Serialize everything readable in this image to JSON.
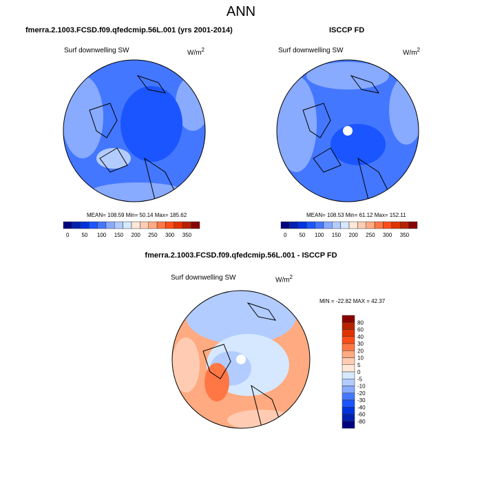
{
  "title": "ANN",
  "panels": [
    {
      "title": "fmerra.2.1003.FCSD.f09.qfedcmip.56L.001 (yrs 2001-2014)",
      "variable": "Surf downwelling SW",
      "units": "W/m",
      "units_sup": "2",
      "stats": "MEAN= 108.59  Min=  50.14  Max= 185.62"
    },
    {
      "title": "ISCCP FD",
      "variable": "Surf downwelling SW",
      "units": "W/m",
      "units_sup": "2",
      "stats": "MEAN= 108.53  Min=  61.12  Max= 152.11"
    },
    {
      "title": "fmerra.2.1003.FCSD.f09.qfedcmip.56L.001 - ISCCP FD",
      "variable": "Surf downwelling SW",
      "units": "W/m",
      "units_sup": "2",
      "stats": "MIN = -22.82 MAX =  42.37"
    }
  ],
  "colorbar_abs": {
    "labels": [
      "0",
      "50",
      "100",
      "150",
      "200",
      "250",
      "300",
      "350"
    ]
  },
  "colorbar_diff": {
    "labels": [
      "80",
      "60",
      "40",
      "30",
      "20",
      "10",
      "5",
      "0",
      "-5",
      "-10",
      "-20",
      "-30",
      "-40",
      "-60",
      "-80"
    ]
  },
  "colors": [
    "#00007f",
    "#0020b0",
    "#0033dd",
    "#1a55ff",
    "#4477ff",
    "#88aaff",
    "#b3ccff",
    "#d6e8ff",
    "#ffe8d8",
    "#ffccb3",
    "#ffaa80",
    "#ff7744",
    "#ff4d1a",
    "#e03300",
    "#b82200",
    "#880000"
  ]
}
